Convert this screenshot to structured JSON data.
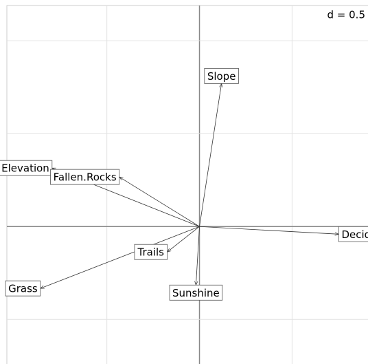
{
  "chart_data": {
    "type": "arrow",
    "annotation": "d = 0.5",
    "xlim": [
      -1.04,
      0.91
    ],
    "ylim": [
      -0.74,
      1.19
    ],
    "xticks": [
      -0.5,
      0,
      0.5
    ],
    "yticks": [
      -0.5,
      0,
      0.5,
      1
    ],
    "grid": true,
    "color": "#333333",
    "vectors": [
      {
        "name": "Slope",
        "x": 0.119,
        "y": 0.77
      },
      {
        "name": "Elevation",
        "x": -0.796,
        "y": 0.315
      },
      {
        "name": "Fallen.Rocks",
        "x": -0.433,
        "y": 0.267
      },
      {
        "name": "Deciduous",
        "x": 0.752,
        "y": -0.041
      },
      {
        "name": "Trails",
        "x": -0.174,
        "y": -0.137
      },
      {
        "name": "Grass",
        "x": -0.859,
        "y": -0.333
      },
      {
        "name": "Sunshine",
        "x": -0.019,
        "y": -0.315
      }
    ]
  }
}
